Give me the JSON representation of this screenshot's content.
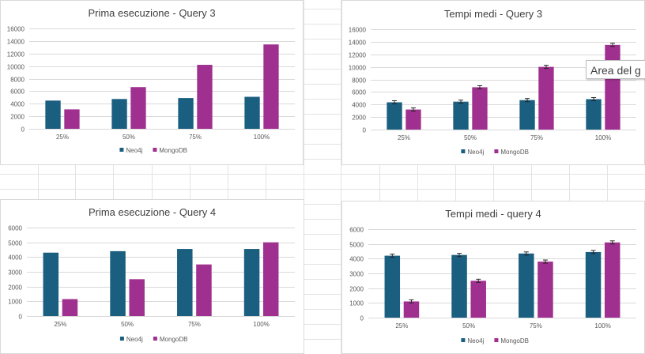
{
  "colors": {
    "neo4j": "#1a5e80",
    "mongodb": "#a0308f",
    "grid": "#d9d9d9",
    "axis_text": "#595959"
  },
  "tooltip": "Area del g",
  "chart_data": [
    {
      "type": "bar",
      "title": "Prima esecuzione - Query 3",
      "categories": [
        "25%",
        "50%",
        "75%",
        "100%"
      ],
      "series": [
        {
          "name": "Neo4j",
          "values": [
            4500,
            4750,
            4900,
            5100
          ]
        },
        {
          "name": "MongoDB",
          "values": [
            3100,
            6650,
            10200,
            13450
          ]
        }
      ],
      "ylim": [
        0,
        16000
      ],
      "yticks": [
        0,
        2000,
        4000,
        6000,
        8000,
        10000,
        12000,
        14000,
        16000
      ],
      "error_bars": false,
      "grid": true,
      "legend": "bottom"
    },
    {
      "type": "bar",
      "title": "Tempi medi - Query 3",
      "categories": [
        "25%",
        "50%",
        "75%",
        "100%"
      ],
      "series": [
        {
          "name": "Neo4j",
          "values": [
            4350,
            4450,
            4700,
            4850
          ]
        },
        {
          "name": "MongoDB",
          "values": [
            3200,
            6750,
            10000,
            13500
          ]
        }
      ],
      "ylim": [
        0,
        16000
      ],
      "yticks": [
        0,
        2000,
        4000,
        6000,
        8000,
        10000,
        12000,
        14000,
        16000
      ],
      "error_bars": true,
      "grid": true,
      "legend": "bottom"
    },
    {
      "type": "bar",
      "title": "Prima esecuzione - Query 4",
      "categories": [
        "25%",
        "50%",
        "75%",
        "100%"
      ],
      "series": [
        {
          "name": "Neo4j",
          "values": [
            4300,
            4400,
            4550,
            4550
          ]
        },
        {
          "name": "MongoDB",
          "values": [
            1150,
            2500,
            3500,
            5000
          ]
        }
      ],
      "ylim": [
        0,
        6000
      ],
      "yticks": [
        0,
        1000,
        2000,
        3000,
        4000,
        5000,
        6000
      ],
      "error_bars": false,
      "grid": true,
      "legend": "bottom"
    },
    {
      "type": "bar",
      "title": "Tempi medi - query 4",
      "categories": [
        "25%",
        "50%",
        "75%",
        "100%"
      ],
      "series": [
        {
          "name": "Neo4j",
          "values": [
            4200,
            4250,
            4350,
            4450
          ]
        },
        {
          "name": "MongoDB",
          "values": [
            1100,
            2500,
            3800,
            5100
          ]
        }
      ],
      "ylim": [
        0,
        6000
      ],
      "yticks": [
        0,
        1000,
        2000,
        3000,
        4000,
        5000,
        6000
      ],
      "error_bars": true,
      "grid": true,
      "legend": "bottom"
    }
  ]
}
